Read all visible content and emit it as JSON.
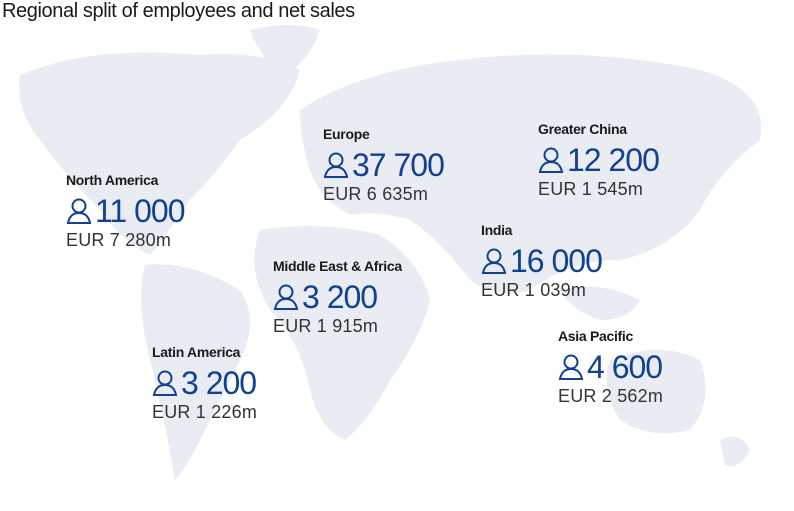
{
  "header": {
    "title": "Regional split of employees and net sales"
  },
  "regions": [
    {
      "name": "North America",
      "employees": "11 000",
      "net_sales": "EUR 7 280m"
    },
    {
      "name": "Europe",
      "employees": "37 700",
      "net_sales": "EUR 6 635m"
    },
    {
      "name": "Greater China",
      "employees": "12 200",
      "net_sales": "EUR 1 545m"
    },
    {
      "name": "India",
      "employees": "16 000",
      "net_sales": "EUR 1 039m"
    },
    {
      "name": "Middle East & Africa",
      "employees": "3 200",
      "net_sales": "EUR 1 915m"
    },
    {
      "name": "Latin America",
      "employees": "3 200",
      "net_sales": "EUR 1 226m"
    },
    {
      "name": "Asia Pacific",
      "employees": "4 600",
      "net_sales": "EUR 2 562m"
    }
  ]
}
